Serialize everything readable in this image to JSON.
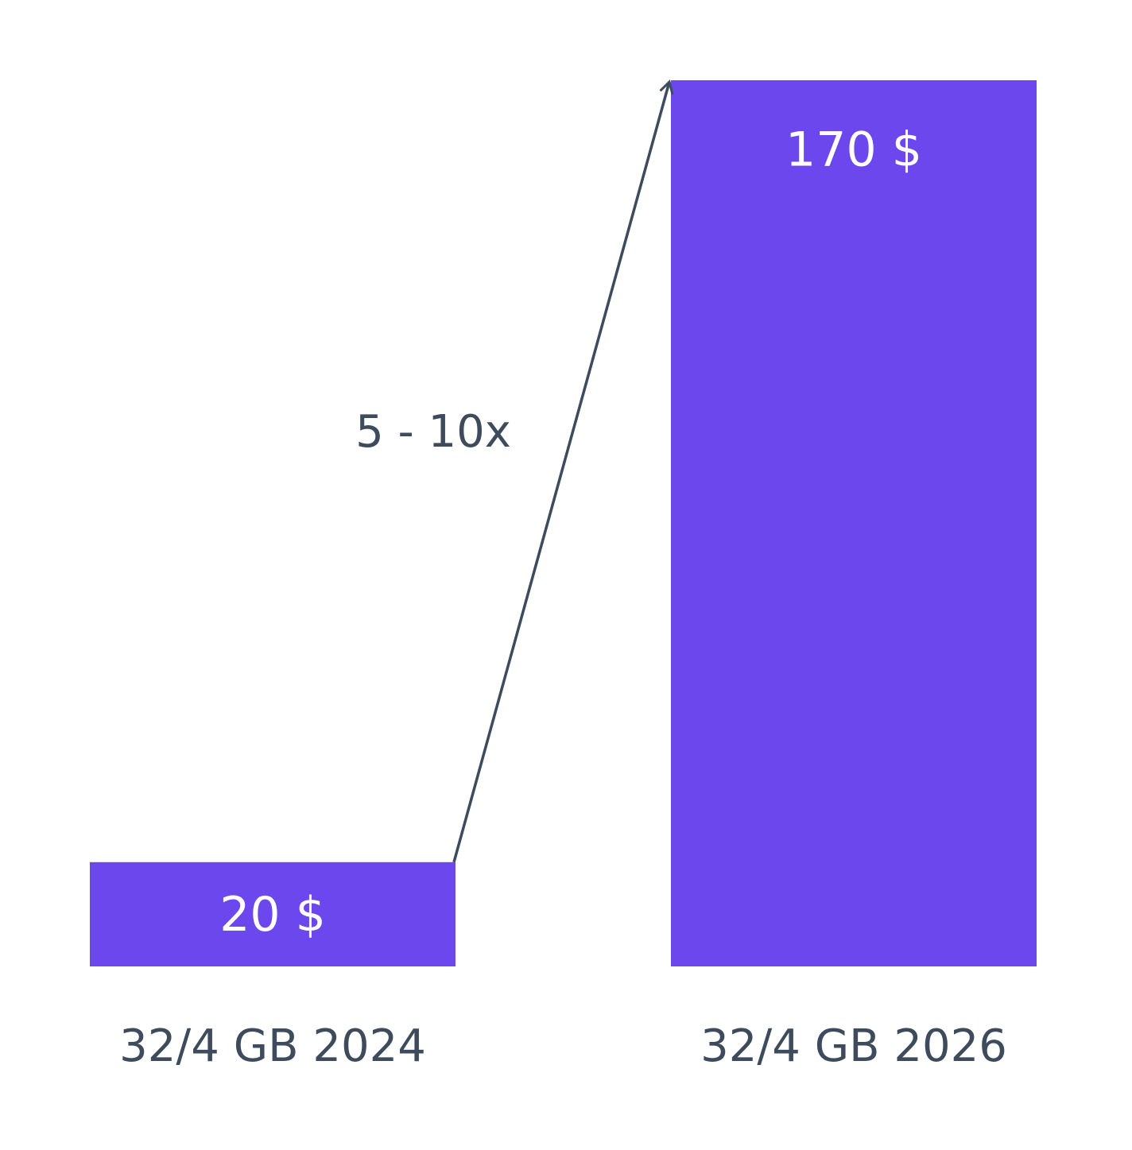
{
  "chart_data": {
    "type": "bar",
    "categories": [
      "32/4 GB 2024",
      "32/4 GB 2026"
    ],
    "values": [
      20,
      170
    ],
    "value_labels": [
      "20 $",
      "170 $"
    ],
    "color": "#6b47ed",
    "annotation": "5 - 10x"
  }
}
